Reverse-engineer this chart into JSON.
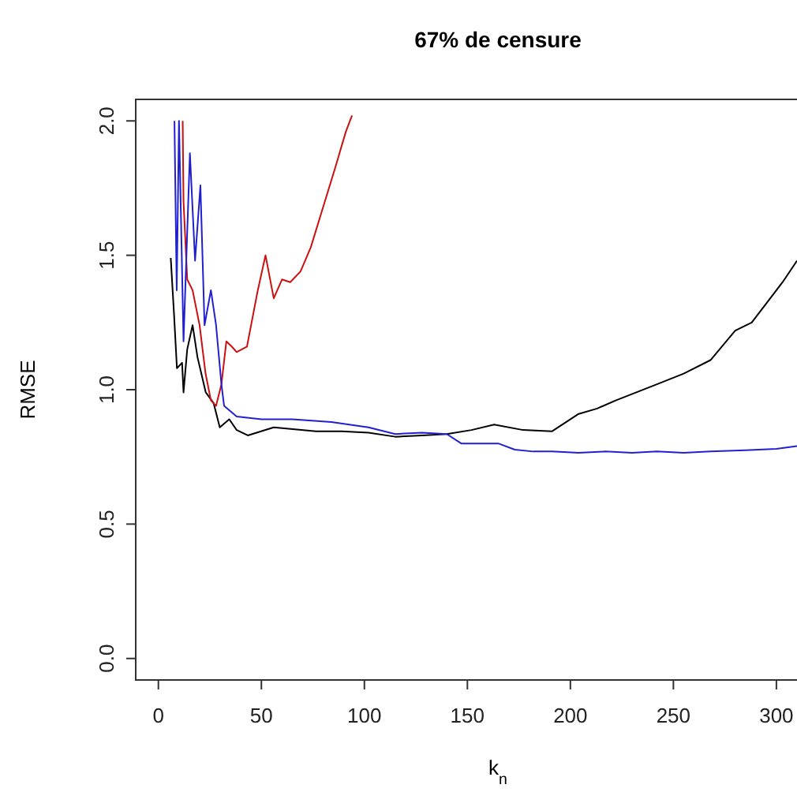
{
  "chart_data": {
    "type": "line",
    "title": "67% de censure",
    "xlabel": "k$_{n}$",
    "ylabel": "RMSE",
    "xlim": [
      -11,
      310
    ],
    "ylim": [
      -0.08,
      2.08
    ],
    "xticks": [
      0,
      50,
      100,
      150,
      200,
      250,
      300
    ],
    "yticks": [
      {
        "value": 0,
        "label": "0.0"
      },
      {
        "value": 0.5,
        "label": "0.5"
      },
      {
        "value": 1,
        "label": "1.0"
      },
      {
        "value": 1.5,
        "label": "1.5"
      },
      {
        "value": 2,
        "label": "2.0"
      }
    ],
    "grid": false,
    "line_style": "solid",
    "marker": "none",
    "series": [
      {
        "color": "#000000",
        "x": [
          6,
          7.6,
          9,
          11.5,
          12.2,
          14,
          16.6,
          19,
          23,
          26.8,
          29.8,
          34.4,
          38,
          43.4,
          56,
          76.5,
          89,
          102,
          115,
          128,
          140,
          152,
          163,
          177,
          191,
          204,
          213,
          222,
          232,
          242,
          255,
          268,
          280,
          288,
          296,
          303,
          310
        ],
        "values": [
          1.49,
          1.28,
          1.08,
          1.1,
          0.99,
          1.15,
          1.24,
          1.12,
          0.99,
          0.95,
          0.86,
          0.89,
          0.85,
          0.83,
          0.86,
          0.845,
          0.845,
          0.84,
          0.825,
          0.83,
          0.835,
          0.85,
          0.87,
          0.85,
          0.845,
          0.91,
          0.93,
          0.96,
          0.99,
          1.02,
          1.06,
          1.11,
          1.22,
          1.25,
          1.33,
          1.4,
          1.48
        ]
      },
      {
        "color": "#cc1010",
        "x": [
          11.8,
          12.2,
          14,
          16.6,
          20,
          22.9,
          25.5,
          28,
          30.6,
          33,
          35.7,
          38,
          43,
          48,
          52,
          56,
          60,
          64,
          69,
          74,
          80,
          86,
          91,
          94
        ],
        "values": [
          2.0,
          1.7,
          1.41,
          1.37,
          1.24,
          1.06,
          0.96,
          0.94,
          1.02,
          1.18,
          1.16,
          1.14,
          1.16,
          1.36,
          1.5,
          1.34,
          1.41,
          1.4,
          1.44,
          1.53,
          1.68,
          1.83,
          1.96,
          2.02
        ]
      },
      {
        "color": "#2020d0",
        "x": [
          7.8,
          8.9,
          10,
          12.2,
          15.3,
          17.8,
          20.4,
          22.4,
          25.5,
          28,
          30.6,
          31.9,
          38,
          50,
          65,
          84,
          102,
          115,
          128,
          140,
          147,
          156,
          165,
          173,
          182,
          191,
          204,
          217,
          230,
          242,
          255,
          268,
          285,
          300,
          310
        ],
        "values": [
          2.0,
          1.37,
          2.0,
          1.18,
          1.88,
          1.48,
          1.76,
          1.24,
          1.37,
          1.24,
          1.02,
          0.94,
          0.9,
          0.89,
          0.89,
          0.88,
          0.86,
          0.835,
          0.84,
          0.835,
          0.8,
          0.8,
          0.8,
          0.777,
          0.77,
          0.77,
          0.765,
          0.77,
          0.765,
          0.77,
          0.765,
          0.77,
          0.775,
          0.78,
          0.79
        ]
      }
    ]
  }
}
